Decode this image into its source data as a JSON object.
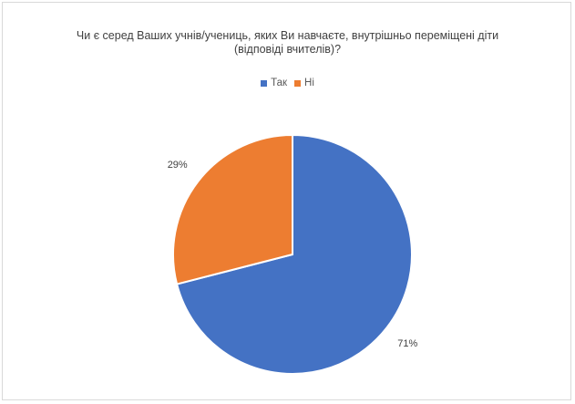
{
  "chart_data": {
    "type": "pie",
    "title_lines": [
      "Чи є серед Ваших учнів/учениць, яких Ви навчаєте, внутрішньо переміщені діти",
      "(відповіді вчителів)?"
    ],
    "categories": [
      "Так",
      "Ні"
    ],
    "values": [
      71,
      29
    ],
    "labels": [
      "71%",
      "29%"
    ],
    "colors": [
      "#4472c4",
      "#ed7d31"
    ],
    "legend_position": "top",
    "start_angle": "12 o'clock",
    "direction": "clockwise"
  }
}
